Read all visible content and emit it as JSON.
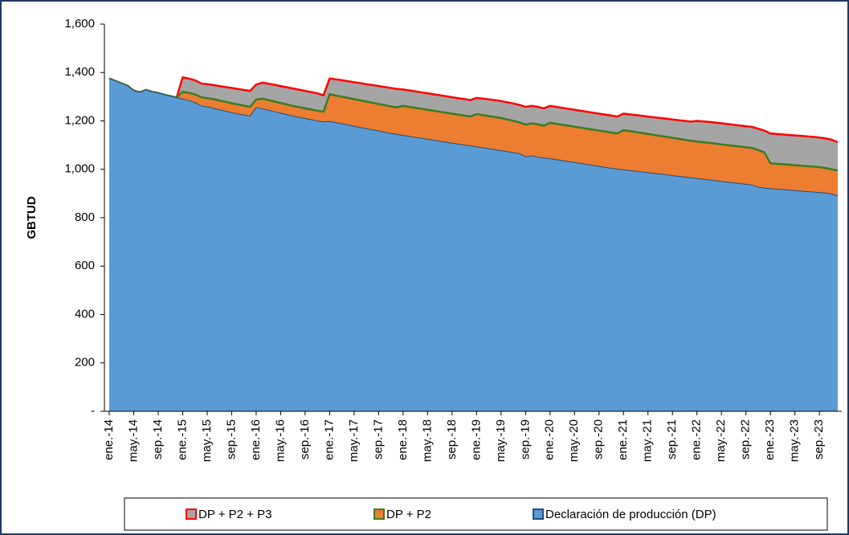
{
  "chart_data": {
    "type": "area",
    "y_label": "GBTUD",
    "categories": [
      "ene.-14",
      null,
      null,
      null,
      "may.-14",
      null,
      null,
      null,
      "sep.-14",
      null,
      null,
      null,
      "ene.-15",
      null,
      null,
      null,
      "may.-15",
      null,
      null,
      null,
      "sep.-15",
      null,
      null,
      null,
      "ene.-16",
      null,
      null,
      null,
      "may.-16",
      null,
      null,
      null,
      "sep.-16",
      null,
      null,
      null,
      "ene.-17",
      null,
      null,
      null,
      "may.-17",
      null,
      null,
      null,
      "sep.-17",
      null,
      null,
      null,
      "ene.-18",
      null,
      null,
      null,
      "may.-18",
      null,
      null,
      null,
      "sep.-18",
      null,
      null,
      null,
      "ene.-19",
      null,
      null,
      null,
      "may.-19",
      null,
      null,
      null,
      "sep.-19",
      null,
      null,
      null,
      "ene.-20",
      null,
      null,
      null,
      "may.-20",
      null,
      null,
      null,
      "sep.-20",
      null,
      null,
      null,
      "ene.-21",
      null,
      null,
      null,
      "may.-21",
      null,
      null,
      null,
      "sep.-21",
      null,
      null,
      null,
      "ene.-22",
      null,
      null,
      null,
      "may.-22",
      null,
      null,
      null,
      "sep.-22",
      null,
      null,
      null,
      "ene.-23",
      null,
      null,
      null,
      "may.-23",
      null,
      null,
      null,
      "sep.-23",
      null,
      null,
      null
    ],
    "series": [
      {
        "name": "DP + P2 + P3",
        "color": "#a5a5a5",
        "line_color": "#ff0000",
        "values": [
          1375,
          1365,
          1355,
          1345,
          1325,
          1318,
          1328,
          1320,
          1315,
          1308,
          1302,
          1296,
          1380,
          1375,
          1368,
          1355,
          1352,
          1348,
          1344,
          1340,
          1336,
          1332,
          1328,
          1324,
          1350,
          1358,
          1354,
          1349,
          1344,
          1339,
          1334,
          1329,
          1324,
          1319,
          1314,
          1306,
          1375,
          1372,
          1368,
          1364,
          1360,
          1356,
          1352,
          1348,
          1344,
          1340,
          1336,
          1332,
          1330,
          1326,
          1322,
          1318,
          1314,
          1310,
          1306,
          1302,
          1298,
          1294,
          1290,
          1286,
          1295,
          1292,
          1289,
          1286,
          1282,
          1277,
          1272,
          1266,
          1258,
          1262,
          1258,
          1252,
          1262,
          1258,
          1254,
          1250,
          1246,
          1242,
          1238,
          1234,
          1230,
          1226,
          1222,
          1218,
          1230,
          1227,
          1224,
          1221,
          1218,
          1215,
          1212,
          1209,
          1206,
          1203,
          1200,
          1197,
          1200,
          1198,
          1196,
          1193,
          1190,
          1187,
          1184,
          1181,
          1178,
          1175,
          1168,
          1160,
          1148,
          1146,
          1144,
          1142,
          1140,
          1138,
          1136,
          1134,
          1131,
          1128,
          1122,
          1112
        ]
      },
      {
        "name": "DP + P2",
        "color": "#ed7d31",
        "line_color": "#3a7d22",
        "values": [
          1375,
          1365,
          1355,
          1345,
          1325,
          1318,
          1328,
          1320,
          1315,
          1308,
          1302,
          1296,
          1320,
          1316,
          1310,
          1298,
          1294,
          1290,
          1284,
          1279,
          1273,
          1268,
          1263,
          1258,
          1288,
          1292,
          1286,
          1280,
          1274,
          1268,
          1262,
          1257,
          1252,
          1247,
          1242,
          1238,
          1310,
          1305,
          1300,
          1295,
          1290,
          1285,
          1280,
          1275,
          1270,
          1265,
          1260,
          1256,
          1262,
          1258,
          1254,
          1250,
          1246,
          1242,
          1238,
          1234,
          1230,
          1226,
          1222,
          1218,
          1228,
          1224,
          1220,
          1216,
          1212,
          1206,
          1200,
          1194,
          1185,
          1190,
          1186,
          1180,
          1192,
          1188,
          1184,
          1180,
          1176,
          1172,
          1168,
          1164,
          1160,
          1156,
          1152,
          1148,
          1162,
          1158,
          1154,
          1150,
          1146,
          1142,
          1138,
          1134,
          1130,
          1126,
          1122,
          1118,
          1115,
          1112,
          1109,
          1106,
          1103,
          1100,
          1097,
          1094,
          1091,
          1088,
          1080,
          1070,
          1025,
          1023,
          1021,
          1019,
          1017,
          1015,
          1013,
          1011,
          1009,
          1005,
          1000,
          995
        ]
      },
      {
        "name": "Declaración de producción (DP)",
        "color": "#5b9bd5",
        "line_color": "#1f4e79",
        "values": [
          1375,
          1365,
          1355,
          1345,
          1325,
          1318,
          1328,
          1320,
          1315,
          1308,
          1302,
          1296,
          1290,
          1284,
          1276,
          1262,
          1258,
          1252,
          1246,
          1240,
          1234,
          1229,
          1224,
          1220,
          1255,
          1250,
          1244,
          1238,
          1232,
          1226,
          1220,
          1215,
          1210,
          1205,
          1200,
          1196,
          1198,
          1193,
          1188,
          1183,
          1178,
          1173,
          1168,
          1163,
          1158,
          1153,
          1148,
          1144,
          1140,
          1136,
          1132,
          1128,
          1124,
          1120,
          1116,
          1112,
          1108,
          1104,
          1100,
          1097,
          1093,
          1089,
          1085,
          1081,
          1077,
          1073,
          1069,
          1065,
          1052,
          1055,
          1050,
          1047,
          1044,
          1040,
          1036,
          1032,
          1028,
          1024,
          1020,
          1016,
          1012,
          1008,
          1004,
          1001,
          998,
          995,
          992,
          989,
          986,
          983,
          980,
          977,
          974,
          971,
          968,
          965,
          962,
          959,
          956,
          953,
          950,
          947,
          944,
          941,
          938,
          935,
          926,
          922,
          920,
          918,
          916,
          914,
          912,
          910,
          908,
          906,
          904,
          902,
          898,
          890
        ]
      }
    ],
    "ylim": [
      0,
      1600
    ],
    "yticks": [
      {
        "value": 0,
        "label": "-"
      },
      200,
      400,
      600,
      800,
      {
        "value": 1000,
        "label": "1,000"
      },
      {
        "value": 1200,
        "label": "1,200"
      },
      {
        "value": 1400,
        "label": "1,400"
      },
      {
        "value": 1600,
        "label": "1,600"
      }
    ],
    "grid": false,
    "legend": "bottom"
  }
}
